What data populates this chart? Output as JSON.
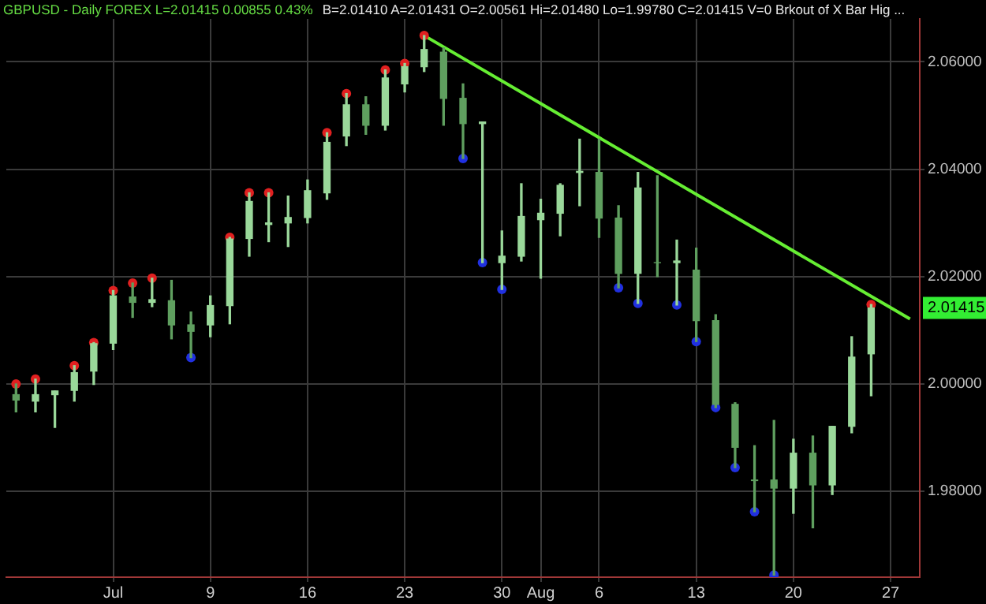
{
  "chart_data": {
    "type": "candlestick",
    "title": "GBPUSD - Daily  FOREX  L=2.01415  0.00855  0.43%",
    "subtitle": "B=2.01410  A=2.01431  O=2.00561  Hi=2.01480  Lo=1.99780  C=2.01415  V=0  Brkout of X Bar Hig ...",
    "categories": [
      null,
      null,
      null,
      null,
      null,
      "Jul",
      null,
      null,
      null,
      null,
      "9",
      null,
      null,
      null,
      null,
      "16",
      null,
      null,
      null,
      null,
      "23",
      null,
      null,
      null,
      null,
      "30",
      null,
      "Aug",
      null,
      null,
      "6",
      null,
      null,
      null,
      null,
      "13",
      null,
      null,
      null,
      null,
      "20",
      null,
      null,
      null,
      null,
      "27",
      null
    ],
    "ohlc": [
      [
        1.998,
        2.0,
        1.9948,
        1.997
      ],
      [
        1.9968,
        2.0009,
        1.9948,
        1.998
      ],
      [
        1.998,
        1.9987,
        1.9919,
        1.9987
      ],
      [
        1.9988,
        2.0034,
        1.9968,
        2.0021
      ],
      [
        2.0024,
        2.0077,
        1.9999,
        2.0075
      ],
      [
        2.0076,
        2.0174,
        2.0064,
        2.0164
      ],
      [
        2.0162,
        2.0188,
        2.0124,
        2.0152
      ],
      [
        2.0152,
        2.0197,
        2.0144,
        2.0157
      ],
      [
        2.0155,
        2.0193,
        2.0084,
        2.011
      ],
      [
        2.011,
        2.0134,
        2.0049,
        2.0098
      ],
      [
        2.011,
        2.0164,
        2.0088,
        2.0146
      ],
      [
        2.0146,
        2.0273,
        2.0112,
        2.027
      ],
      [
        2.0271,
        2.0356,
        2.0238,
        2.034
      ],
      [
        2.0297,
        2.0356,
        2.0265,
        2.03
      ],
      [
        2.03,
        2.035,
        2.0256,
        2.031
      ],
      [
        2.031,
        2.038,
        2.03,
        2.036
      ],
      [
        2.0356,
        2.0468,
        2.0344,
        2.045
      ],
      [
        2.0462,
        2.0541,
        2.0444,
        2.052
      ],
      [
        2.052,
        2.0535,
        2.0465,
        2.0482
      ],
      [
        2.0482,
        2.0585,
        2.0473,
        2.057
      ],
      [
        2.0559,
        2.0597,
        2.0544,
        2.0591
      ],
      [
        2.0591,
        2.0649,
        2.0582,
        2.0623
      ],
      [
        2.0618,
        2.0626,
        2.0482,
        2.0532
      ],
      [
        2.0532,
        2.0559,
        2.042,
        2.0485
      ],
      [
        2.0485,
        2.0488,
        2.0226,
        2.0488
      ],
      [
        2.0226,
        2.0285,
        2.0176,
        2.0238
      ],
      [
        2.0238,
        2.0373,
        2.0229,
        2.0312
      ],
      [
        2.0306,
        2.0344,
        2.0197,
        2.0318
      ],
      [
        2.0318,
        2.0373,
        2.0276,
        2.037
      ],
      [
        2.0394,
        2.0456,
        2.0332,
        2.0396
      ],
      [
        2.0394,
        2.0456,
        2.0273,
        2.0309
      ],
      [
        2.0309,
        2.0332,
        2.0179,
        2.0206
      ],
      [
        2.0206,
        2.0394,
        2.015,
        2.0365
      ],
      [
        2.0226,
        2.0388,
        2.02,
        2.0226
      ],
      [
        2.0226,
        2.0268,
        2.0147,
        2.0229
      ],
      [
        2.0212,
        2.0253,
        2.0079,
        2.0118
      ],
      [
        2.0118,
        2.0129,
        1.9956,
        1.9962
      ],
      [
        1.9962,
        1.9965,
        1.9844,
        1.9882
      ],
      [
        1.9821,
        1.9885,
        1.9762,
        1.982
      ],
      [
        1.9821,
        1.9932,
        1.9644,
        1.9806
      ],
      [
        1.9806,
        1.9897,
        1.9759,
        1.9871
      ],
      [
        1.9871,
        1.9903,
        1.9732,
        1.9812
      ],
      [
        1.9812,
        1.9921,
        1.9794,
        1.9921
      ],
      [
        1.9921,
        2.0088,
        1.9909,
        2.005
      ],
      [
        2.00561,
        2.0148,
        1.9978,
        2.01415
      ],
      null,
      null
    ],
    "colors": [
      "#5f9f5f",
      "#9ad89a",
      "#9ad89a",
      "#9ad89a",
      "#9ad89a",
      "#9ad89a",
      "#5f9f5f",
      "#9ad89a",
      "#5f9f5f",
      "#5f9f5f",
      "#9ad89a",
      "#9ad89a",
      "#9ad89a",
      "#9ad89a",
      "#9ad89a",
      "#9ad89a",
      "#9ad89a",
      "#9ad89a",
      "#5f9f5f",
      "#9ad89a",
      "#9ad89a",
      "#9ad89a",
      "#5f9f5f",
      "#5f9f5f",
      "#9ad89a",
      "#9ad89a",
      "#9ad89a",
      "#9ad89a",
      "#9ad89a",
      "#9ad89a",
      "#5f9f5f",
      "#5f9f5f",
      "#9ad89a",
      "#5f9f5f",
      "#9ad89a",
      "#5f9f5f",
      "#5f9f5f",
      "#5f9f5f",
      "#5f9f5f",
      "#5f9f5f",
      "#9ad89a",
      "#5f9f5f",
      "#9ad89a",
      "#9ad89a",
      "#9ad89a",
      null,
      null
    ],
    "series": [
      {
        "type": "line",
        "color": "#66ee33",
        "values": [
          null,
          null,
          null,
          null,
          null,
          null,
          null,
          null,
          null,
          null,
          null,
          null,
          null,
          null,
          null,
          null,
          null,
          null,
          null,
          null,
          null,
          2.0649,
          null,
          null,
          null,
          null,
          null,
          null,
          null,
          null,
          null,
          null,
          null,
          null,
          null,
          null,
          null,
          null,
          null,
          null,
          null,
          null,
          null,
          null,
          null,
          null,
          2.0121
        ]
      },
      {
        "type": "scatter",
        "marker": "circle",
        "color": "#e02020",
        "values": [
          2.0,
          2.0009,
          null,
          2.0034,
          2.0077,
          2.0174,
          2.0188,
          2.0197,
          null,
          null,
          null,
          2.0273,
          2.0356,
          2.0356,
          null,
          null,
          2.0468,
          2.0541,
          null,
          2.0585,
          2.0597,
          2.0649,
          null,
          null,
          null,
          null,
          null,
          null,
          null,
          null,
          null,
          null,
          null,
          null,
          null,
          null,
          null,
          null,
          null,
          null,
          null,
          null,
          null,
          null,
          2.0148,
          null,
          null
        ]
      },
      {
        "type": "scatter",
        "marker": "circle",
        "color": "#2030e0",
        "values": [
          null,
          null,
          null,
          null,
          null,
          null,
          null,
          null,
          null,
          2.0049,
          null,
          null,
          null,
          null,
          null,
          null,
          null,
          null,
          null,
          null,
          null,
          null,
          null,
          2.042,
          2.0226,
          2.0176,
          null,
          null,
          null,
          null,
          null,
          2.0179,
          2.015,
          null,
          2.0147,
          2.0079,
          1.9956,
          1.9844,
          1.9762,
          1.9644,
          null,
          null,
          null,
          null,
          null,
          null,
          null
        ]
      }
    ],
    "ylim": [
      1.964,
      2.068
    ],
    "yticks": [
      {
        "value": 1.98,
        "label": "1.98000"
      },
      {
        "value": 2.0,
        "label": "2.00000"
      },
      {
        "value": 2.02,
        "label": "2.02000"
      },
      {
        "value": 2.04,
        "label": "2.04000"
      },
      {
        "value": 2.06,
        "label": "2.06000"
      }
    ],
    "grid": true,
    "annotations": [
      {
        "text": "2.01415",
        "y": 2.01415
      }
    ]
  }
}
